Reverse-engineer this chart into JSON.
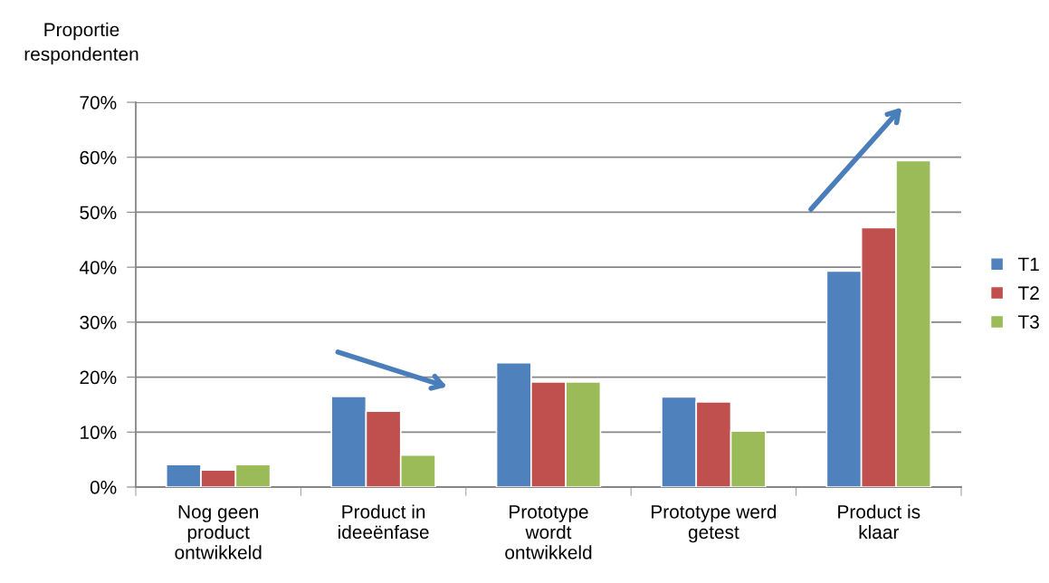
{
  "chart_data": {
    "type": "bar",
    "ylabel": "Proportie\nrespondenten",
    "categories": [
      "Nog geen\nproduct\nontwikkeld",
      "Product in\nideeënfase",
      "Prototype\nwordt\nontwikkeld",
      "Prototype werd\ngetest",
      "Product is\nklaar"
    ],
    "series": [
      {
        "name": "T1",
        "color": "#4f81bd",
        "values": [
          4.1,
          16.5,
          22.6,
          16.4,
          39.3
        ]
      },
      {
        "name": "T2",
        "color": "#c0504d",
        "values": [
          3.1,
          13.8,
          19.1,
          15.5,
          47.2
        ]
      },
      {
        "name": "T3",
        "color": "#9bbb59",
        "values": [
          4.1,
          5.8,
          19.1,
          10.2,
          59.4
        ]
      }
    ],
    "ylim": [
      0,
      70
    ],
    "yticks": [
      {
        "value": 0,
        "label": "0%"
      },
      {
        "value": 10,
        "label": "10%"
      },
      {
        "value": 20,
        "label": "20%"
      },
      {
        "value": 30,
        "label": "30%"
      },
      {
        "value": 40,
        "label": "40%"
      },
      {
        "value": 50,
        "label": "50%"
      },
      {
        "value": 60,
        "label": "60%"
      },
      {
        "value": 70,
        "label": "70%"
      }
    ],
    "grid": "y",
    "legend": "right"
  }
}
